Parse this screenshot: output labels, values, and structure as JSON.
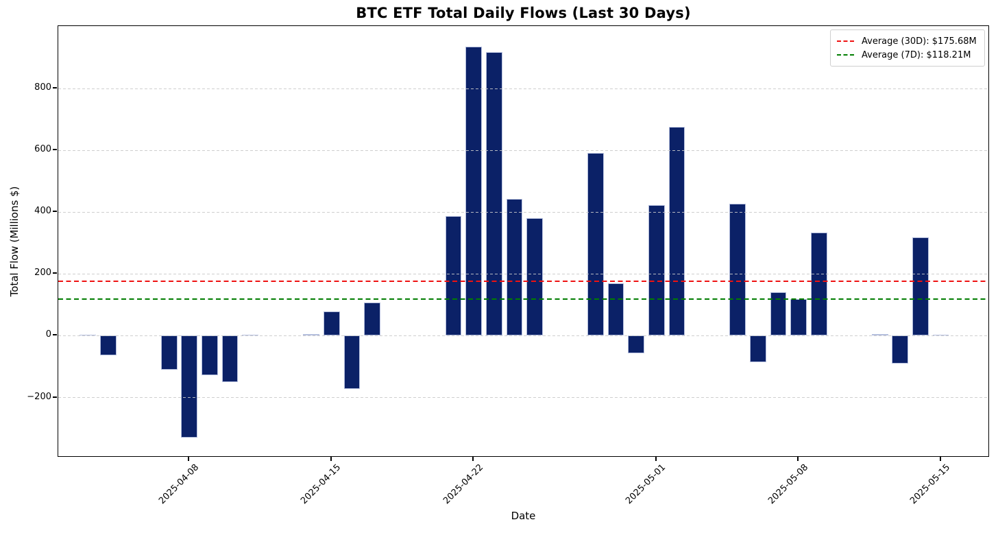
{
  "chart_data": {
    "type": "bar",
    "title": "BTC ETF Total Daily Flows (Last 30 Days)",
    "xlabel": "Date",
    "ylabel": "Total Flow (Millions $)",
    "categories": [
      "2025-04-03",
      "2025-04-04",
      "2025-04-07",
      "2025-04-08",
      "2025-04-09",
      "2025-04-10",
      "2025-04-11",
      "2025-04-14",
      "2025-04-15",
      "2025-04-16",
      "2025-04-17",
      "2025-04-21",
      "2025-04-22",
      "2025-04-23",
      "2025-04-24",
      "2025-04-25",
      "2025-04-28",
      "2025-04-29",
      "2025-04-30",
      "2025-05-01",
      "2025-05-02",
      "2025-05-05",
      "2025-05-06",
      "2025-05-07",
      "2025-05-08",
      "2025-05-09",
      "2025-05-12",
      "2025-05-13",
      "2025-05-14",
      "2025-05-15"
    ],
    "values": [
      1,
      -63,
      -110,
      -330,
      -128,
      -150,
      2,
      3,
      78,
      -173,
      107,
      388,
      936,
      917,
      442,
      380,
      592,
      170,
      -57,
      423,
      675,
      427,
      -85,
      141,
      118,
      334,
      6,
      -91,
      318,
      1
    ],
    "ylim": [
      -394,
      1002
    ],
    "grid": true,
    "legend_position": "upper right",
    "yticks": [
      {
        "value": 800,
        "label": "800"
      },
      {
        "value": 600,
        "label": "600"
      },
      {
        "value": 400,
        "label": "400"
      },
      {
        "value": 200,
        "label": "200"
      },
      {
        "value": 0,
        "label": "0"
      },
      {
        "value": -200,
        "label": "−200"
      }
    ],
    "xticks": [
      {
        "date": "2025-04-08",
        "label": "2025-04-08"
      },
      {
        "date": "2025-04-15",
        "label": "2025-04-15"
      },
      {
        "date": "2025-04-22",
        "label": "2025-04-22"
      },
      {
        "date": "2025-05-01",
        "label": "2025-05-01"
      },
      {
        "date": "2025-05-08",
        "label": "2025-05-08"
      },
      {
        "date": "2025-05-15",
        "label": "2025-05-15"
      }
    ],
    "avg_lines": [
      {
        "name": "avg-30d",
        "label": "Average (30D): $175.68M",
        "value": 175.68,
        "color": "#ee1111",
        "line_style": "dashed"
      },
      {
        "name": "avg-7d",
        "label": "Average (7D): $118.21M",
        "value": 118.21,
        "color": "#007d00",
        "line_style": "dashed"
      }
    ],
    "colors": {
      "bar_fill": "#0b2167",
      "bar_edge": "#b4bedd",
      "grid": "#c9c9c9",
      "axis": "#000000"
    }
  }
}
